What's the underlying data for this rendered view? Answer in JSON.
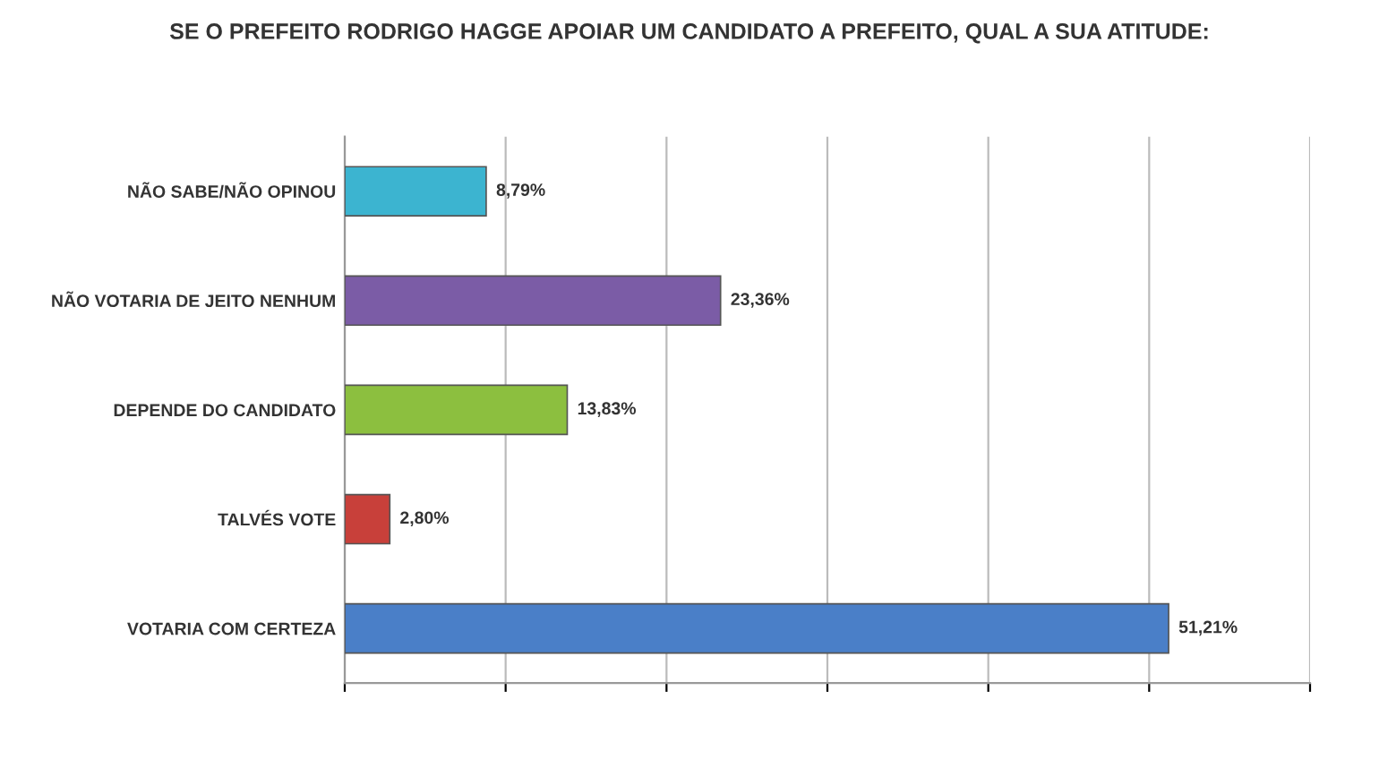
{
  "chart_data": {
    "type": "bar",
    "orientation": "horizontal",
    "title": "SE O PREFEITO RODRIGO HAGGE APOIAR UM CANDIDATO A PREFEITO, QUAL A SUA ATITUDE:",
    "categories": [
      "NÃO SABE/NÃO OPINOU",
      "NÃO VOTARIA DE JEITO NENHUM",
      "DEPENDE DO CANDIDATO",
      "TALVÉS VOTE",
      "VOTARIA COM CERTEZA"
    ],
    "values": [
      8.79,
      23.36,
      13.83,
      2.8,
      51.21
    ],
    "colors": [
      "#3cb4d0",
      "#7b5ca6",
      "#8cbf3f",
      "#c8403a",
      "#4a7fc8"
    ],
    "value_labels": [
      "8,79%",
      "23,36%",
      "13,83%",
      "2,80%",
      "51,21%"
    ],
    "xlim": [
      0,
      60
    ],
    "xticks": [
      {
        "value": 0,
        "label": null
      },
      {
        "value": 10,
        "label": null
      },
      {
        "value": 20,
        "label": null
      },
      {
        "value": 30,
        "label": null
      },
      {
        "value": 40,
        "label": null
      },
      {
        "value": 50,
        "label": null
      },
      {
        "value": 60,
        "label": null
      }
    ],
    "grid": "x",
    "tick_labels": "y"
  }
}
